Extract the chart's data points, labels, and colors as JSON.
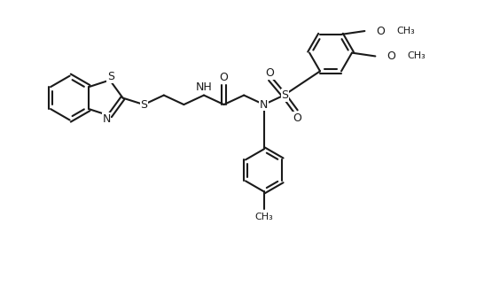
{
  "background_color": "#ffffff",
  "line_color": "#1a1a1a",
  "line_width": 1.5,
  "text_color": "#1a1a1a",
  "font_size": 9,
  "figsize": [
    5.55,
    3.41
  ],
  "dpi": 100,
  "xlim": [
    0,
    11
  ],
  "ylim": [
    0,
    7
  ]
}
